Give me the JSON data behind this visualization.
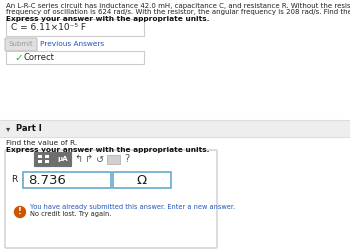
{
  "white": "#ffffff",
  "light_gray_bg": "#f5f5f5",
  "part_bg": "#eeeeee",
  "header_line1": "An L-R-C series circuit has inductance 42.0 mH, capacitance C, and resistance R. Without the resistor, the angular",
  "header_line2": "frequency of oscillation is 624 rad/s. With the resistor, the angular frequency is 208 rad/s. Find the value of C.",
  "bold_label": "Express your answer with the appropriate units.",
  "c_answer": "C = 6.11×10⁻⁵ F",
  "submit_text": "Submit",
  "prev_answers_text": "Previous Answers",
  "correct_text": "Correct",
  "part_label": "Part I",
  "find_r_text": "Find the value of R.",
  "bold_label2": "Express your answer with the appropriate units.",
  "r_label": "R =",
  "r_value": "8.736",
  "r_unit": "Ω",
  "warn_line1": "You have already submitted this answer. Enter a new answer.",
  "warn_line2": "No credit lost. Try again.",
  "gray_btn": "#7a7a7a",
  "blue_link": "#2255bb",
  "green_check": "#33aa33",
  "orange_warn": "#cc5500",
  "teal_border": "#66aacc",
  "box_border": "#cccccc",
  "part_divider": "#dddddd",
  "text_dark": "#222222",
  "text_black": "#111111"
}
